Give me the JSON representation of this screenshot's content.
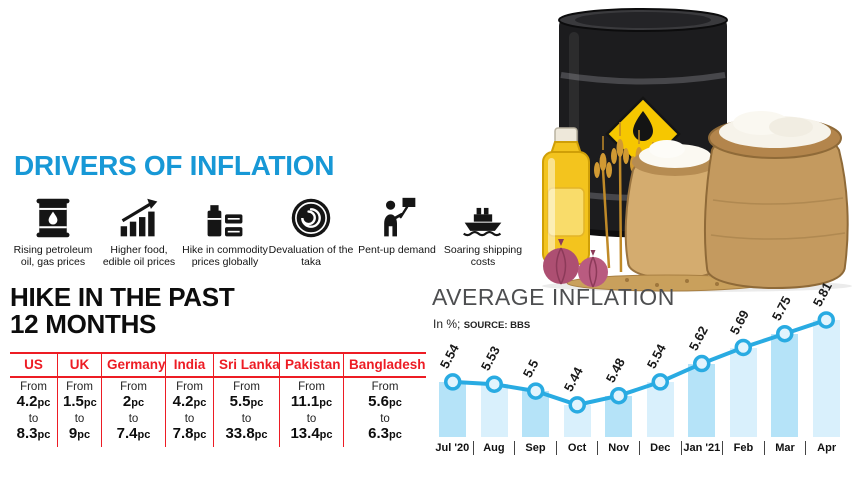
{
  "colors": {
    "accent_blue": "#1798d6",
    "accent_red": "#ed1c24",
    "chart_line_blue": "#29abe2",
    "bar_blue_dark": "#b5e3f8",
    "bar_blue_light": "#d9f0fc"
  },
  "drivers": {
    "title": "DRIVERS OF INFLATION",
    "items": [
      {
        "icon": "oil-barrel-icon",
        "label": "Rising petroleum oil, gas prices"
      },
      {
        "icon": "rising-bars-icon",
        "label": "Higher food, edible oil prices"
      },
      {
        "icon": "commodity-goods-icon",
        "label": "Hike in commodity prices globally"
      },
      {
        "icon": "taka-coin-icon",
        "label": "Devaluation of the taka"
      },
      {
        "icon": "pent-up-demand-icon",
        "label": "Pent-up demand"
      },
      {
        "icon": "cargo-ship-icon",
        "label": "Soaring shipping costs"
      }
    ]
  },
  "hike": {
    "title_line1": "HIKE IN THE PAST",
    "title_line2": "12 MONTHS",
    "from_label": "From",
    "to_label": "to",
    "unit": "pc",
    "columns": [
      {
        "country": "US",
        "from": "4.2",
        "to": "8.3"
      },
      {
        "country": "UK",
        "from": "1.5",
        "to": "9"
      },
      {
        "country": "Germany",
        "from": "2",
        "to": "7.4"
      },
      {
        "country": "India",
        "from": "4.2",
        "to": "7.8"
      },
      {
        "country": "Sri Lanka",
        "from": "5.5",
        "to": "33.8"
      },
      {
        "country": "Pakistan",
        "from": "11.1",
        "to": "13.4"
      },
      {
        "country": "Bangladesh",
        "from": "5.6",
        "to": "6.3"
      }
    ]
  },
  "average_inflation": {
    "title": "AVERAGE INFLATION",
    "subtitle_prefix": "In %; ",
    "source": "SOURCE: BBS"
  },
  "chart_data": {
    "type": "bar+line",
    "title": "AVERAGE INFLATION",
    "ylabel": "In %",
    "source": "SOURCE: BBS",
    "categories": [
      "Jul '20",
      "Aug",
      "Sep",
      "Oct",
      "Nov",
      "Dec",
      "Jan '21",
      "Feb",
      "Mar",
      "Apr"
    ],
    "values": [
      5.54,
      5.53,
      5.5,
      5.44,
      5.48,
      5.54,
      5.62,
      5.69,
      5.75,
      5.81
    ],
    "labels": [
      "5.54",
      "5.53",
      "5.5",
      "5.44",
      "5.48",
      "5.54",
      "5.62",
      "5.69",
      "5.75",
      "5.81"
    ],
    "ylim": [
      5.3,
      5.91
    ],
    "grid": false,
    "legend": "none",
    "bar_colors": [
      "#b5e3f8",
      "#d9f0fc"
    ],
    "line_color": "#29abe2"
  }
}
